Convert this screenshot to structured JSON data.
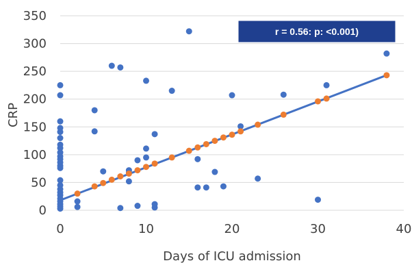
{
  "chart_data": {
    "type": "scatter",
    "title": "",
    "xlabel": "Days of ICU admission",
    "ylabel": "CRP",
    "xlim": [
      0,
      40
    ],
    "ylim": [
      0,
      350
    ],
    "xticks": [
      0,
      10,
      20,
      30,
      40
    ],
    "yticks": [
      0,
      50,
      100,
      150,
      200,
      250,
      300,
      350
    ],
    "grid": "horizontal",
    "legend": "none",
    "annotation": "r = 0.56: p: <0.001)",
    "colors": {
      "observed": "#4472C4",
      "fitted": "#ED7D31",
      "trendline": "#4472C4",
      "annotation_fill": "#1F3F8F",
      "grid": "#D9D9D9"
    },
    "series": [
      {
        "role": "observed",
        "points": [
          [
            0,
            225
          ],
          [
            0,
            207
          ],
          [
            0,
            160
          ],
          [
            0,
            148
          ],
          [
            0,
            141
          ],
          [
            0,
            130
          ],
          [
            0,
            118
          ],
          [
            0,
            112
          ],
          [
            0,
            104
          ],
          [
            0,
            97
          ],
          [
            0,
            92
          ],
          [
            0,
            86
          ],
          [
            0,
            80
          ],
          [
            0,
            76
          ],
          [
            0,
            54
          ],
          [
            0,
            45
          ],
          [
            0,
            38
          ],
          [
            0,
            32
          ],
          [
            0,
            27
          ],
          [
            0,
            21
          ],
          [
            0,
            16
          ],
          [
            0,
            11
          ],
          [
            0,
            7
          ],
          [
            0,
            3
          ],
          [
            2,
            16
          ],
          [
            2,
            6
          ],
          [
            4,
            180
          ],
          [
            4,
            142
          ],
          [
            5,
            70
          ],
          [
            6,
            260
          ],
          [
            7,
            257
          ],
          [
            7,
            4
          ],
          [
            8,
            72
          ],
          [
            8,
            68
          ],
          [
            8,
            52
          ],
          [
            9,
            90
          ],
          [
            9,
            8
          ],
          [
            10,
            233
          ],
          [
            10,
            111
          ],
          [
            10,
            95
          ],
          [
            11,
            137
          ],
          [
            11,
            11
          ],
          [
            11,
            5
          ],
          [
            13,
            215
          ],
          [
            15,
            322
          ],
          [
            16,
            92
          ],
          [
            16,
            41
          ],
          [
            17,
            41
          ],
          [
            18,
            69
          ],
          [
            19,
            43
          ],
          [
            20,
            207
          ],
          [
            21,
            151
          ],
          [
            23,
            57
          ],
          [
            26,
            208
          ],
          [
            30,
            19
          ],
          [
            31,
            225
          ],
          [
            38,
            282
          ]
        ]
      },
      {
        "role": "fitted",
        "points": [
          [
            2,
            30
          ],
          [
            4,
            43
          ],
          [
            5,
            49
          ],
          [
            6,
            55
          ],
          [
            7,
            61
          ],
          [
            8,
            66
          ],
          [
            9,
            72
          ],
          [
            10,
            78
          ],
          [
            11,
            84
          ],
          [
            13,
            95
          ],
          [
            15,
            107
          ],
          [
            16,
            113
          ],
          [
            17,
            119
          ],
          [
            18,
            125
          ],
          [
            19,
            131
          ],
          [
            20,
            136
          ],
          [
            21,
            142
          ],
          [
            23,
            154
          ],
          [
            26,
            172
          ],
          [
            30,
            196
          ],
          [
            31,
            201
          ],
          [
            38,
            243
          ]
        ]
      }
    ],
    "trendline": {
      "x": [
        0,
        38
      ],
      "y": [
        18,
        243
      ]
    }
  }
}
